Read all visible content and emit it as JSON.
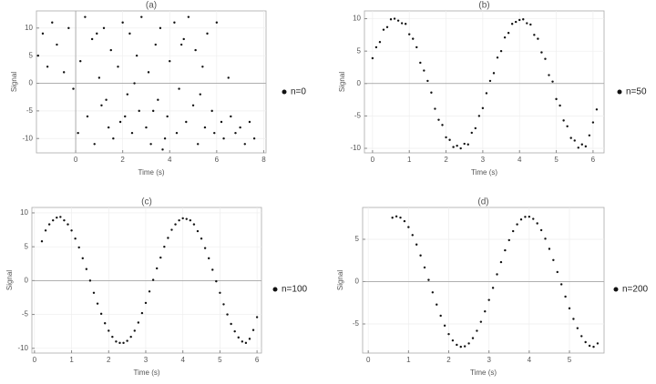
{
  "chart_data": [
    {
      "type": "scatter",
      "title": "(a)",
      "xlabel": "Time (s)",
      "ylabel": "Signal",
      "grid": true,
      "legend": "right",
      "xlim": [
        -1.67,
        8.1
      ],
      "ylim": [
        -12.6,
        13.1
      ],
      "xticks": [
        0,
        2,
        4,
        6,
        8
      ],
      "yticks": [
        -10,
        -5,
        0,
        5,
        10
      ],
      "series": [
        {
          "name": "n=0",
          "color": "#111111",
          "x": [
            -1.6,
            -1.4,
            -1.2,
            -1.0,
            -0.8,
            -0.5,
            -0.3,
            -0.1,
            0.1,
            0.2,
            0.4,
            0.5,
            0.7,
            0.8,
            1.0,
            1.1,
            1.2,
            1.4,
            1.5,
            1.6,
            1.8,
            1.9,
            2.0,
            2.2,
            2.3,
            2.4,
            2.6,
            2.7,
            2.8,
            3.0,
            3.1,
            3.2,
            3.4,
            3.5,
            3.6,
            3.8,
            3.9,
            4.0,
            4.2,
            4.3,
            4.4,
            4.6,
            4.7,
            4.8,
            5.0,
            5.1,
            5.2,
            5.4,
            5.5,
            5.6,
            5.8,
            5.9,
            6.0,
            6.2,
            6.3,
            6.5,
            6.6,
            6.8,
            7.0,
            7.2,
            7.4,
            7.6,
            2.5,
            3.3,
            1.3,
            4.5,
            5.3,
            0.9,
            3.7,
            2.1
          ],
          "values": [
            5,
            9,
            3,
            11,
            7,
            2,
            10,
            -1,
            -9,
            4,
            12,
            -6,
            8,
            -11,
            1,
            -4,
            10,
            -8,
            6,
            -10,
            3,
            -7,
            11,
            -2,
            9,
            -9,
            5,
            -5,
            12,
            -8,
            2,
            -11,
            7,
            -3,
            10,
            -10,
            -6,
            4,
            11,
            -9,
            -1,
            8,
            -7,
            12,
            -4,
            6,
            -11,
            3,
            -8,
            9,
            -5,
            -9,
            11,
            -7,
            -10,
            1,
            -6,
            -9,
            -8,
            -11,
            -7,
            -10,
            0,
            -5,
            -3,
            7,
            -2,
            9,
            -12,
            -6
          ]
        }
      ]
    },
    {
      "type": "scatter",
      "title": "(b)",
      "xlabel": "Time (s)",
      "ylabel": "Signal",
      "grid": true,
      "legend": "right",
      "xlim": [
        -0.22,
        6.3
      ],
      "ylim": [
        -10.7,
        11.2
      ],
      "xticks": [
        0,
        1,
        2,
        3,
        4,
        5,
        6
      ],
      "yticks": [
        -10,
        -5,
        0,
        5,
        10
      ],
      "series": [
        {
          "name": "n=50",
          "color": "#111111",
          "x": [
            0,
            0.1,
            0.2,
            0.3,
            0.4,
            0.5,
            0.6,
            0.7,
            0.8,
            0.9,
            1.0,
            1.1,
            1.2,
            1.3,
            1.4,
            1.5,
            1.6,
            1.7,
            1.8,
            1.9,
            2.0,
            2.1,
            2.2,
            2.3,
            2.4,
            2.5,
            2.6,
            2.7,
            2.8,
            2.9,
            3.0,
            3.1,
            3.2,
            3.3,
            3.4,
            3.5,
            3.6,
            3.7,
            3.8,
            3.9,
            4.0,
            4.1,
            4.2,
            4.3,
            4.4,
            4.5,
            4.6,
            4.7,
            4.8,
            4.9,
            5.0,
            5.1,
            5.2,
            5.3,
            5.4,
            5.5,
            5.6,
            5.7,
            5.8,
            5.9,
            6.0,
            6.1
          ],
          "values": [
            3.9,
            5.6,
            6.4,
            8.3,
            8.7,
            9.9,
            10.0,
            9.7,
            9.3,
            9.2,
            7.6,
            6.9,
            5.6,
            3.2,
            2.0,
            0.4,
            -1.4,
            -3.9,
            -5.6,
            -6.4,
            -8.3,
            -8.7,
            -9.8,
            -9.6,
            -10.0,
            -9.3,
            -9.4,
            -7.6,
            -6.9,
            -5.0,
            -3.8,
            -1.5,
            0.4,
            1.6,
            4.0,
            5.0,
            7.1,
            7.8,
            9.2,
            9.5,
            9.8,
            9.9,
            9.3,
            9.1,
            7.5,
            6.9,
            4.8,
            3.8,
            1.3,
            0.3,
            -2.4,
            -3.4,
            -5.7,
            -6.6,
            -8.4,
            -8.8,
            -9.9,
            -9.4,
            -9.7,
            -8.0,
            -6.0,
            -4.0
          ]
        }
      ]
    },
    {
      "type": "scatter",
      "title": "(c)",
      "xlabel": "Time (s)",
      "ylabel": "Signal",
      "grid": true,
      "legend": "right",
      "xlim": [
        -0.07,
        6.12
      ],
      "ylim": [
        -10.7,
        10.8
      ],
      "xticks": [
        0,
        1,
        2,
        3,
        4,
        5,
        6
      ],
      "yticks": [
        -10,
        -5,
        0,
        5,
        10
      ],
      "series": [
        {
          "name": "n=100",
          "color": "#111111",
          "x": [
            0.2,
            0.3,
            0.4,
            0.5,
            0.6,
            0.7,
            0.8,
            0.9,
            1.0,
            1.1,
            1.2,
            1.3,
            1.4,
            1.5,
            1.6,
            1.7,
            1.8,
            1.9,
            2.0,
            2.1,
            2.2,
            2.3,
            2.4,
            2.5,
            2.6,
            2.7,
            2.8,
            2.9,
            3.0,
            3.1,
            3.2,
            3.3,
            3.4,
            3.5,
            3.6,
            3.7,
            3.8,
            3.9,
            4.0,
            4.1,
            4.2,
            4.3,
            4.4,
            4.5,
            4.6,
            4.7,
            4.8,
            4.9,
            5.0,
            5.1,
            5.2,
            5.3,
            5.4,
            5.5,
            5.6,
            5.7,
            5.8,
            5.9,
            6.0
          ],
          "values": [
            5.8,
            7.4,
            8.3,
            8.9,
            9.3,
            9.4,
            8.9,
            8.3,
            7.4,
            6.2,
            4.9,
            3.3,
            1.7,
            0.0,
            -1.8,
            -3.4,
            -4.9,
            -6.3,
            -7.4,
            -8.3,
            -9.0,
            -9.2,
            -9.2,
            -8.9,
            -8.3,
            -7.4,
            -6.2,
            -4.8,
            -3.3,
            -1.6,
            0.1,
            1.8,
            3.4,
            5.0,
            6.3,
            7.5,
            8.3,
            8.9,
            9.2,
            9.1,
            8.9,
            8.3,
            7.3,
            6.2,
            4.8,
            3.3,
            1.6,
            -0.1,
            -1.8,
            -3.5,
            -5.0,
            -6.4,
            -7.5,
            -8.4,
            -9.0,
            -9.2,
            -8.6,
            -7.3,
            -5.4
          ]
        }
      ]
    },
    {
      "type": "scatter",
      "title": "(d)",
      "xlabel": "Time (s)",
      "ylabel": "Signal",
      "grid": true,
      "legend": "right",
      "xlim": [
        -0.14,
        5.86
      ],
      "ylim": [
        -8.44,
        8.76
      ],
      "xticks": [
        0,
        1,
        2,
        3,
        4,
        5
      ],
      "yticks": [
        -5,
        0,
        5
      ],
      "series": [
        {
          "name": "n=200",
          "color": "#111111",
          "x": [
            0.6,
            0.7,
            0.8,
            0.9,
            1.0,
            1.1,
            1.2,
            1.3,
            1.4,
            1.5,
            1.6,
            1.7,
            1.8,
            1.9,
            2.0,
            2.1,
            2.2,
            2.3,
            2.4,
            2.5,
            2.6,
            2.7,
            2.8,
            2.9,
            3.0,
            3.1,
            3.2,
            3.3,
            3.4,
            3.5,
            3.6,
            3.7,
            3.8,
            3.9,
            4.0,
            4.1,
            4.2,
            4.3,
            4.4,
            4.5,
            4.6,
            4.7,
            4.8,
            4.9,
            5.0,
            5.1,
            5.2,
            5.3,
            5.4,
            5.5,
            5.6,
            5.7
          ],
          "values": [
            7.55,
            7.7,
            7.56,
            7.14,
            6.44,
            5.5,
            4.38,
            3.09,
            1.67,
            0.2,
            -1.27,
            -2.71,
            -4.03,
            -5.2,
            -6.2,
            -6.95,
            -7.47,
            -7.7,
            -7.64,
            -7.3,
            -6.68,
            -5.81,
            -4.75,
            -3.52,
            -2.17,
            -0.74,
            0.86,
            2.3,
            3.7,
            4.9,
            5.96,
            6.76,
            7.34,
            7.65,
            7.67,
            7.41,
            6.88,
            6.08,
            5.07,
            3.87,
            2.55,
            1.13,
            -0.32,
            -1.77,
            -3.16,
            -4.41,
            -5.5,
            -6.44,
            -7.15,
            -7.58,
            -7.7,
            -7.3
          ]
        }
      ]
    }
  ]
}
